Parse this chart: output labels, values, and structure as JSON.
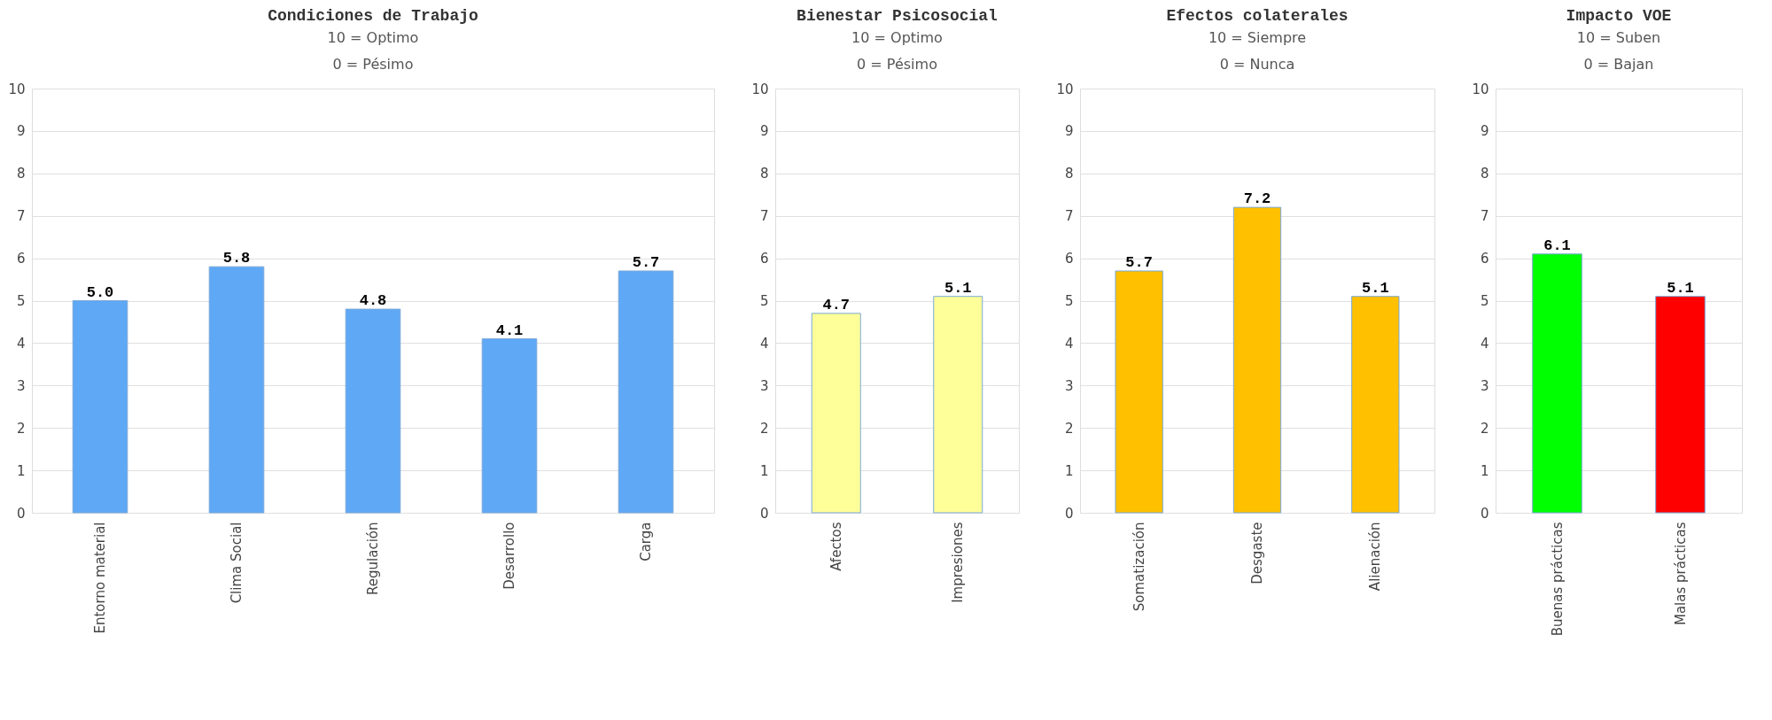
{
  "chart_data": [
    {
      "type": "bar",
      "title": "Condiciones de Trabajo",
      "subtitle": "10 = Optimo\n0 = Pésimo",
      "categories": [
        "Entorno material",
        "Clima Social",
        "Regulación",
        "Desarrollo",
        "Carga"
      ],
      "values": [
        5.0,
        5.8,
        4.8,
        4.1,
        5.7
      ],
      "value_labels": [
        "5.0",
        "5.8",
        "4.8",
        "4.1",
        "5.7"
      ],
      "color": "#5fa8f5",
      "ylim": [
        0,
        10
      ],
      "yticks": [
        0,
        1,
        2,
        3,
        4,
        5,
        6,
        7,
        8,
        9,
        10
      ],
      "grid": "y"
    },
    {
      "type": "bar",
      "title": "Bienestar Psicosocial",
      "subtitle": "10 = Optimo\n0 = Pésimo",
      "categories": [
        "Afectos",
        "Impresiones"
      ],
      "values": [
        4.7,
        5.1
      ],
      "value_labels": [
        "4.7",
        "5.1"
      ],
      "color": "#ffff99",
      "ylim": [
        0,
        10
      ],
      "yticks": [
        0,
        1,
        2,
        3,
        4,
        5,
        6,
        7,
        8,
        9,
        10
      ],
      "grid": "y"
    },
    {
      "type": "bar",
      "title": "Efectos colaterales",
      "subtitle": "10 = Siempre\n0 = Nunca",
      "categories": [
        "Somatización",
        "Desgaste",
        "Alienación"
      ],
      "values": [
        5.7,
        7.2,
        5.1
      ],
      "value_labels": [
        "5.7",
        "7.2",
        "5.1"
      ],
      "color": "#ffc000",
      "ylim": [
        0,
        10
      ],
      "yticks": [
        0,
        1,
        2,
        3,
        4,
        5,
        6,
        7,
        8,
        9,
        10
      ],
      "grid": "y"
    },
    {
      "type": "bar",
      "title": "Impacto VOE",
      "subtitle": "10 = Suben\n0 = Bajan",
      "categories": [
        "Buenas prácticas",
        "Malas prácticas"
      ],
      "values": [
        6.1,
        5.1
      ],
      "value_labels": [
        "6.1",
        "5.1"
      ],
      "colors": [
        "#00ff00",
        "#ff0000"
      ],
      "ylim": [
        0,
        10
      ],
      "yticks": [
        0,
        1,
        2,
        3,
        4,
        5,
        6,
        7,
        8,
        9,
        10
      ],
      "grid": "y"
    }
  ]
}
